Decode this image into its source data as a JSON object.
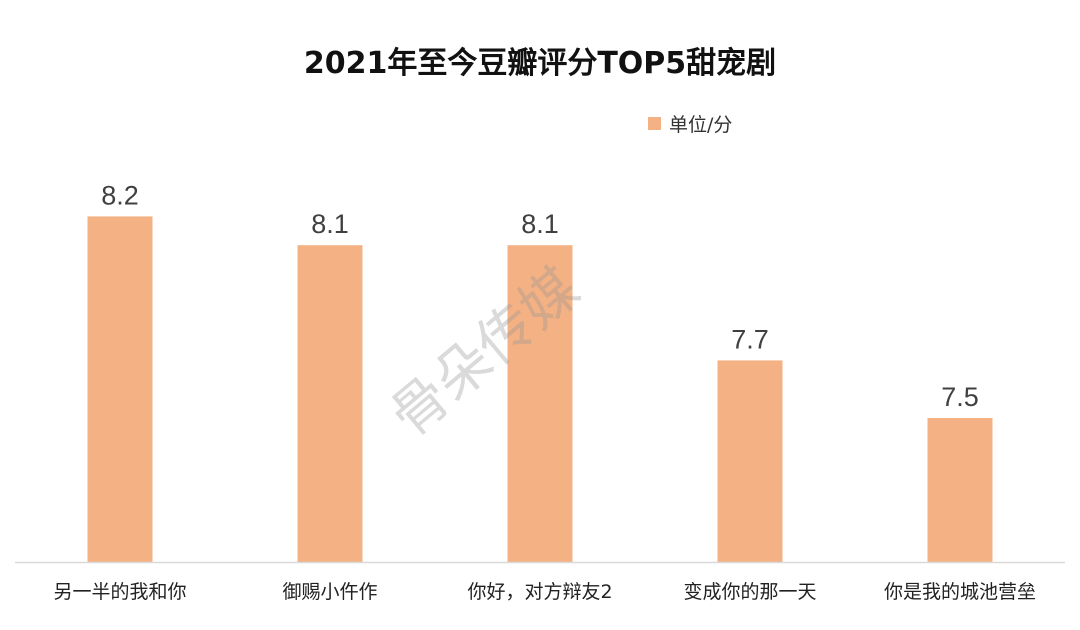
{
  "chart_data": {
    "type": "bar",
    "title": "2021年至今豆瓣评分TOP5甜宠剧",
    "legend": "单位/分",
    "legend_position": "top-right",
    "categories": [
      "另一半的我和你",
      "御赐小仵作",
      "你好，对方辩友2",
      "变成你的那一天",
      "你是我的城池营垒"
    ],
    "values": [
      8.2,
      8.1,
      8.1,
      7.7,
      7.5
    ],
    "xlabel": "",
    "ylabel": "",
    "ylim": [
      7.0,
      8.5
    ],
    "grid": false,
    "bar_color": "#F4B183"
  },
  "watermark": "骨朵传媒"
}
